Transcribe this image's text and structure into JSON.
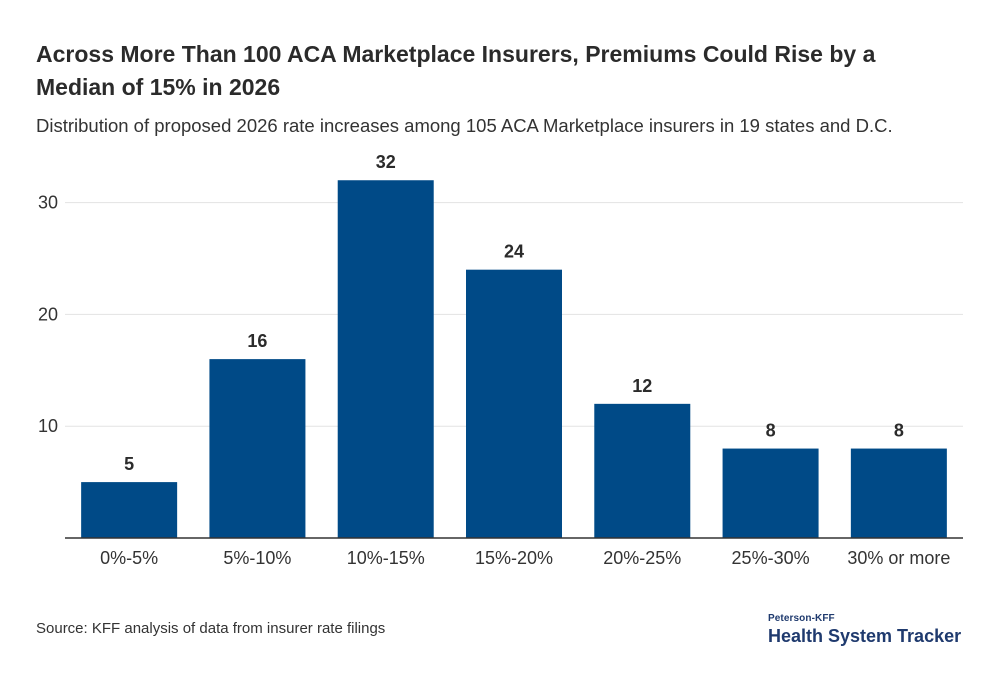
{
  "title": "Across More Than 100 ACA Marketplace Insurers, Premiums Could Rise by a Median of 15% in 2026",
  "subtitle": "Distribution of proposed 2026 rate increases among 105 ACA Marketplace insurers in 19 states and D.C.",
  "source": "Source: KFF analysis of data from insurer rate filings",
  "brand": {
    "small": "Peterson-KFF",
    "large": "Health System Tracker"
  },
  "colors": {
    "bar": "#004a87",
    "grid": "#e3e3e3",
    "axis": "#333333"
  },
  "chart_data": {
    "type": "bar",
    "title": "Across More Than 100 ACA Marketplace Insurers, Premiums Could Rise by a Median of 15% in 2026",
    "xlabel": "",
    "ylabel": "",
    "categories": [
      "0%-5%",
      "5%-10%",
      "10%-15%",
      "15%-20%",
      "20%-25%",
      "25%-30%",
      "30% or more"
    ],
    "values": [
      5,
      16,
      32,
      24,
      12,
      8,
      8
    ],
    "ylim": [
      0,
      35
    ],
    "yticks": [
      10,
      20,
      30
    ],
    "grid": true,
    "data_labels": true
  }
}
